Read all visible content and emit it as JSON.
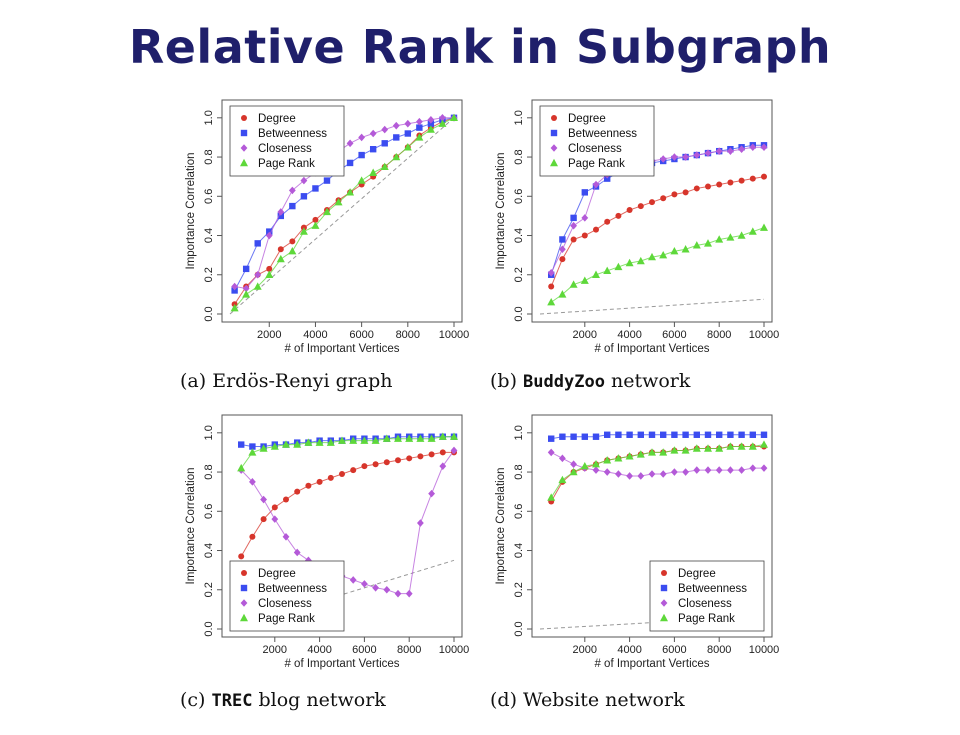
{
  "slide": {
    "title": "Relative Rank in Subgraph"
  },
  "chart_data": [
    {
      "type": "line",
      "caption_prefix": "(a)",
      "caption_mono": "",
      "caption_rest": " Erdös-Renyi graph",
      "xlabel": "# of Important Vertices",
      "ylabel": "Importance Correlation",
      "xlim": [
        300,
        10000
      ],
      "ylim": [
        0,
        1.05
      ],
      "xticks": [
        2000,
        4000,
        6000,
        8000,
        10000
      ],
      "yticks": [
        0.0,
        0.2,
        0.4,
        0.6,
        0.8,
        1.0
      ],
      "legend": "top-left",
      "x": [
        500,
        1000,
        1500,
        2000,
        2500,
        3000,
        3500,
        4000,
        4500,
        5000,
        5500,
        6000,
        6500,
        7000,
        7500,
        8000,
        8500,
        9000,
        9500,
        10000
      ],
      "baseline": [
        [
          300,
          0.0
        ],
        [
          10000,
          1.0
        ]
      ],
      "series": [
        {
          "name": "Degree",
          "color": "#d7352b",
          "marker": "circle",
          "values": [
            0.05,
            0.14,
            0.2,
            0.23,
            0.33,
            0.37,
            0.44,
            0.48,
            0.53,
            0.58,
            0.62,
            0.66,
            0.7,
            0.75,
            0.8,
            0.85,
            0.91,
            0.95,
            0.98,
            1.0
          ]
        },
        {
          "name": "Betweenness",
          "color": "#3b4cf0",
          "marker": "square",
          "values": [
            0.12,
            0.23,
            0.36,
            0.42,
            0.5,
            0.55,
            0.6,
            0.64,
            0.68,
            0.73,
            0.77,
            0.81,
            0.84,
            0.87,
            0.9,
            0.92,
            0.95,
            0.97,
            0.99,
            1.0
          ]
        },
        {
          "name": "Closeness",
          "color": "#b45ad8",
          "marker": "diamond",
          "values": [
            0.14,
            0.13,
            0.2,
            0.4,
            0.52,
            0.63,
            0.68,
            0.72,
            0.77,
            0.83,
            0.87,
            0.9,
            0.92,
            0.94,
            0.96,
            0.97,
            0.98,
            0.99,
            1.0,
            1.0
          ]
        },
        {
          "name": "Page Rank",
          "color": "#5ed83a",
          "marker": "triangle",
          "values": [
            0.03,
            0.1,
            0.14,
            0.2,
            0.28,
            0.32,
            0.42,
            0.45,
            0.52,
            0.57,
            0.62,
            0.68,
            0.72,
            0.75,
            0.8,
            0.85,
            0.9,
            0.94,
            0.97,
            1.0
          ]
        }
      ]
    },
    {
      "type": "line",
      "caption_prefix": "(b)",
      "caption_mono": "BuddyZoo",
      "caption_rest": " network",
      "xlabel": "# of Important Vertices",
      "ylabel": "Importance Correlation",
      "xlim": [
        0,
        10000
      ],
      "ylim": [
        0,
        1.05
      ],
      "xticks": [
        2000,
        4000,
        6000,
        8000,
        10000
      ],
      "yticks": [
        0.0,
        0.2,
        0.4,
        0.6,
        0.8,
        1.0
      ],
      "legend": "top-left",
      "x": [
        500,
        1000,
        1500,
        2000,
        2500,
        3000,
        3500,
        4000,
        4500,
        5000,
        5500,
        6000,
        6500,
        7000,
        7500,
        8000,
        8500,
        9000,
        9500,
        10000
      ],
      "baseline": [
        [
          0,
          0.0
        ],
        [
          10000,
          0.075
        ]
      ],
      "series": [
        {
          "name": "Degree",
          "color": "#d7352b",
          "marker": "circle",
          "values": [
            0.14,
            0.28,
            0.38,
            0.4,
            0.43,
            0.47,
            0.5,
            0.53,
            0.55,
            0.57,
            0.59,
            0.61,
            0.62,
            0.64,
            0.65,
            0.66,
            0.67,
            0.68,
            0.69,
            0.7
          ]
        },
        {
          "name": "Betweenness",
          "color": "#3b4cf0",
          "marker": "square",
          "values": [
            0.2,
            0.38,
            0.49,
            0.62,
            0.65,
            0.69,
            0.72,
            0.74,
            0.75,
            0.77,
            0.78,
            0.79,
            0.8,
            0.81,
            0.82,
            0.83,
            0.84,
            0.85,
            0.86,
            0.86
          ]
        },
        {
          "name": "Closeness",
          "color": "#b45ad8",
          "marker": "diamond",
          "values": [
            0.21,
            0.33,
            0.45,
            0.49,
            0.66,
            0.71,
            0.73,
            0.74,
            0.76,
            0.78,
            0.79,
            0.8,
            0.8,
            0.81,
            0.82,
            0.83,
            0.83,
            0.84,
            0.85,
            0.85
          ]
        },
        {
          "name": "Page Rank",
          "color": "#5ed83a",
          "marker": "triangle",
          "values": [
            0.06,
            0.1,
            0.15,
            0.17,
            0.2,
            0.22,
            0.24,
            0.26,
            0.27,
            0.29,
            0.3,
            0.32,
            0.33,
            0.35,
            0.36,
            0.38,
            0.39,
            0.4,
            0.42,
            0.44
          ]
        }
      ]
    },
    {
      "type": "line",
      "caption_prefix": "(c)",
      "caption_mono": "TREC",
      "caption_rest": " blog network",
      "xlabel": "# of Important Vertices",
      "ylabel": "Importance Correlation",
      "xlim": [
        0,
        10000
      ],
      "ylim": [
        0,
        1.05
      ],
      "xticks": [
        2000,
        4000,
        6000,
        8000,
        10000
      ],
      "yticks": [
        0.0,
        0.2,
        0.4,
        0.6,
        0.8,
        1.0
      ],
      "legend": "bottom-left",
      "x": [
        500,
        1000,
        1500,
        2000,
        2500,
        3000,
        3500,
        4000,
        4500,
        5000,
        5500,
        6000,
        6500,
        7000,
        7500,
        8000,
        8500,
        9000,
        9500,
        10000
      ],
      "baseline": [
        [
          0,
          0.0
        ],
        [
          10000,
          0.35
        ]
      ],
      "series": [
        {
          "name": "Degree",
          "color": "#d7352b",
          "marker": "circle",
          "values": [
            0.37,
            0.47,
            0.56,
            0.62,
            0.66,
            0.7,
            0.73,
            0.75,
            0.77,
            0.79,
            0.81,
            0.83,
            0.84,
            0.85,
            0.86,
            0.87,
            0.88,
            0.89,
            0.9,
            0.9
          ]
        },
        {
          "name": "Betweenness",
          "color": "#3b4cf0",
          "marker": "square",
          "values": [
            0.94,
            0.93,
            0.93,
            0.94,
            0.94,
            0.95,
            0.95,
            0.96,
            0.96,
            0.96,
            0.97,
            0.97,
            0.97,
            0.97,
            0.98,
            0.98,
            0.98,
            0.98,
            0.98,
            0.98
          ]
        },
        {
          "name": "Closeness",
          "color": "#b45ad8",
          "marker": "diamond",
          "values": [
            0.81,
            0.75,
            0.66,
            0.56,
            0.47,
            0.39,
            0.35,
            0.31,
            0.29,
            0.27,
            0.25,
            0.23,
            0.21,
            0.2,
            0.18,
            0.18,
            0.54,
            0.69,
            0.83,
            0.91
          ]
        },
        {
          "name": "Page Rank",
          "color": "#5ed83a",
          "marker": "triangle",
          "values": [
            0.82,
            0.9,
            0.92,
            0.93,
            0.94,
            0.94,
            0.95,
            0.95,
            0.95,
            0.96,
            0.96,
            0.96,
            0.96,
            0.97,
            0.97,
            0.97,
            0.97,
            0.97,
            0.98,
            0.98
          ]
        }
      ]
    },
    {
      "type": "line",
      "caption_prefix": "(d)",
      "caption_mono": "",
      "caption_rest": " Website network",
      "xlabel": "# of Important Vertices",
      "ylabel": "Importance Correlation",
      "xlim": [
        0,
        10000
      ],
      "ylim": [
        0,
        1.05
      ],
      "xticks": [
        2000,
        4000,
        6000,
        8000,
        10000
      ],
      "yticks": [
        0.0,
        0.2,
        0.4,
        0.6,
        0.8,
        1.0
      ],
      "legend": "bottom-right",
      "x": [
        500,
        1000,
        1500,
        2000,
        2500,
        3000,
        3500,
        4000,
        4500,
        5000,
        5500,
        6000,
        6500,
        7000,
        7500,
        8000,
        8500,
        9000,
        9500,
        10000
      ],
      "baseline": [
        [
          0,
          0.0
        ],
        [
          10000,
          0.065
        ]
      ],
      "series": [
        {
          "name": "Degree",
          "color": "#d7352b",
          "marker": "circle",
          "values": [
            0.65,
            0.75,
            0.8,
            0.82,
            0.84,
            0.86,
            0.87,
            0.88,
            0.89,
            0.9,
            0.9,
            0.91,
            0.91,
            0.92,
            0.92,
            0.92,
            0.93,
            0.93,
            0.93,
            0.93
          ]
        },
        {
          "name": "Betweenness",
          "color": "#3b4cf0",
          "marker": "square",
          "values": [
            0.97,
            0.98,
            0.98,
            0.98,
            0.98,
            0.99,
            0.99,
            0.99,
            0.99,
            0.99,
            0.99,
            0.99,
            0.99,
            0.99,
            0.99,
            0.99,
            0.99,
            0.99,
            0.99,
            0.99
          ]
        },
        {
          "name": "Closeness",
          "color": "#b45ad8",
          "marker": "diamond",
          "values": [
            0.9,
            0.87,
            0.84,
            0.82,
            0.81,
            0.8,
            0.79,
            0.78,
            0.78,
            0.79,
            0.79,
            0.8,
            0.8,
            0.81,
            0.81,
            0.81,
            0.81,
            0.81,
            0.82,
            0.82
          ]
        },
        {
          "name": "Page Rank",
          "color": "#5ed83a",
          "marker": "triangle",
          "values": [
            0.67,
            0.76,
            0.8,
            0.83,
            0.84,
            0.86,
            0.87,
            0.88,
            0.89,
            0.9,
            0.9,
            0.91,
            0.91,
            0.92,
            0.92,
            0.92,
            0.93,
            0.93,
            0.93,
            0.94
          ]
        }
      ]
    }
  ]
}
